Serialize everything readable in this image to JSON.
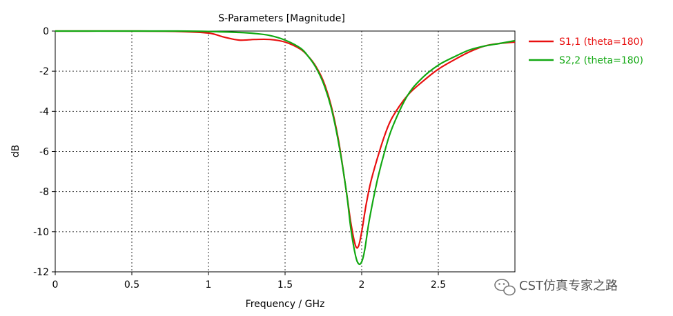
{
  "chart_data": {
    "type": "line",
    "title": "S-Parameters [Magnitude]",
    "xlabel": "Frequency / GHz",
    "ylabel": "dB",
    "xlim": [
      0,
      3
    ],
    "ylim": [
      -12,
      0
    ],
    "x_ticks": [
      0,
      0.5,
      1,
      1.5,
      2,
      2.5
    ],
    "y_ticks": [
      0,
      -2,
      -4,
      -6,
      -8,
      -10,
      -12
    ],
    "grid": true,
    "legend_position": "right",
    "series": [
      {
        "name": "S1,1 (theta=180)",
        "color": "#e81010",
        "x": [
          0,
          0.5,
          0.8,
          1.0,
          1.1,
          1.2,
          1.3,
          1.4,
          1.5,
          1.6,
          1.65,
          1.7,
          1.75,
          1.8,
          1.85,
          1.9,
          1.93,
          1.96,
          1.98,
          2.0,
          2.03,
          2.06,
          2.1,
          2.15,
          2.2,
          2.3,
          2.4,
          2.5,
          2.6,
          2.7,
          2.8,
          2.9,
          3.0
        ],
        "y": [
          0,
          0,
          -0.02,
          -0.1,
          -0.3,
          -0.45,
          -0.42,
          -0.42,
          -0.55,
          -0.9,
          -1.25,
          -1.75,
          -2.5,
          -3.7,
          -5.5,
          -8.0,
          -9.6,
          -10.7,
          -10.7,
          -10.0,
          -8.6,
          -7.5,
          -6.4,
          -5.2,
          -4.3,
          -3.2,
          -2.5,
          -1.9,
          -1.45,
          -1.05,
          -0.75,
          -0.62,
          -0.55
        ]
      },
      {
        "name": "S2,2 (theta=180)",
        "color": "#12a812",
        "x": [
          0,
          0.5,
          0.8,
          1.0,
          1.2,
          1.3,
          1.4,
          1.5,
          1.6,
          1.65,
          1.7,
          1.75,
          1.8,
          1.85,
          1.9,
          1.93,
          1.96,
          1.98,
          2.0,
          2.02,
          2.05,
          2.1,
          2.15,
          2.2,
          2.3,
          2.4,
          2.5,
          2.6,
          2.7,
          2.8,
          2.9,
          3.0
        ],
        "y": [
          0,
          0,
          0,
          -0.02,
          -0.07,
          -0.12,
          -0.22,
          -0.45,
          -0.85,
          -1.25,
          -1.8,
          -2.6,
          -3.8,
          -5.6,
          -8.0,
          -9.9,
          -11.2,
          -11.6,
          -11.5,
          -10.9,
          -9.4,
          -7.5,
          -6.0,
          -4.8,
          -3.2,
          -2.3,
          -1.7,
          -1.3,
          -0.95,
          -0.75,
          -0.62,
          -0.48
        ]
      }
    ]
  },
  "watermark": "CST仿真专家之路"
}
